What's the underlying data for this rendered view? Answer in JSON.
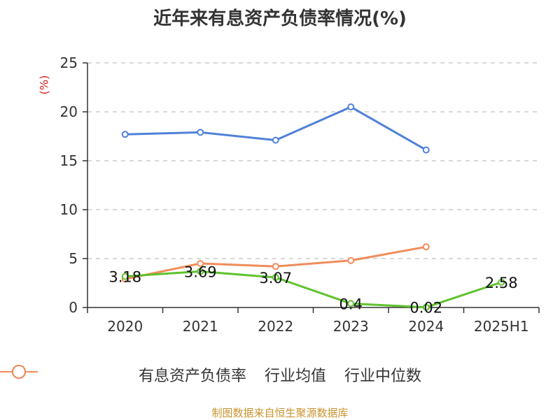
{
  "title": "近年来有息资产负债率情况(%)",
  "unit_label": "(%)",
  "source": "制图数据来自恒生聚源数据库",
  "colors": {
    "series1": "#5ec22c",
    "series2": "#4f81d9",
    "series3": "#f08c5a",
    "axis": "#333333",
    "grid": "#cccccc"
  },
  "chart_data": {
    "type": "line",
    "title": "近年来有息资产负债率情况(%)",
    "ylabel": "(%)",
    "xlabel": "",
    "categories": [
      "2020",
      "2021",
      "2022",
      "2023",
      "2024",
      "2025H1"
    ],
    "ylim": [
      0,
      25
    ],
    "yticks": [
      0,
      5,
      10,
      15,
      20,
      25
    ],
    "grid": true,
    "legend_position": "bottom",
    "series": [
      {
        "name": "有息资产负债率",
        "values": [
          3.18,
          3.69,
          3.07,
          0.4,
          0.02,
          2.58
        ],
        "labels": [
          "3.18",
          "3.69",
          "3.07",
          "0.4",
          "0.02",
          "2.58"
        ]
      },
      {
        "name": "行业均值",
        "values": [
          17.7,
          17.9,
          17.1,
          20.5,
          16.1,
          null
        ]
      },
      {
        "name": "行业中位数",
        "values": [
          2.9,
          4.5,
          4.2,
          4.8,
          6.2,
          null
        ]
      }
    ]
  }
}
